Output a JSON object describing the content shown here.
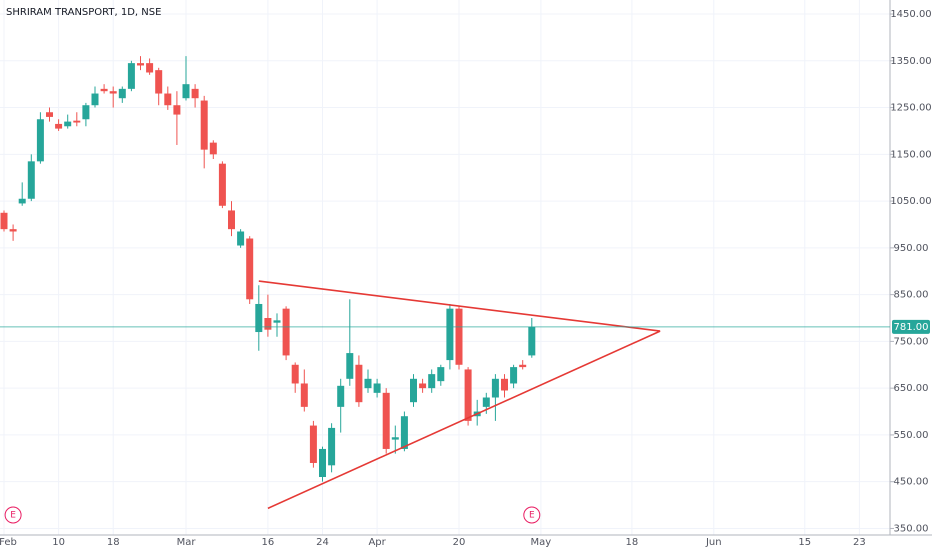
{
  "chart_data": {
    "type": "candlestick",
    "title": "SHRIRAM TRANSPORT, 1D, NSE",
    "categories": [
      "Feb",
      null,
      null,
      null,
      null,
      null,
      "10",
      null,
      null,
      null,
      null,
      null,
      "18",
      null,
      null,
      null,
      null,
      null,
      null,
      null,
      "Mar",
      null,
      null,
      null,
      null,
      null,
      null,
      null,
      null,
      "16",
      null,
      null,
      null,
      null,
      null,
      "24",
      null,
      null,
      null,
      null,
      null,
      "Apr",
      null,
      null,
      null,
      null,
      null,
      null,
      null,
      null,
      "20",
      null,
      null,
      null,
      null,
      null,
      null,
      null,
      null,
      "May",
      null,
      null,
      null,
      null,
      null,
      null,
      null,
      null,
      null,
      "18",
      null,
      null,
      null,
      null,
      null,
      null,
      null,
      null,
      "Jun",
      null,
      null,
      null,
      null,
      null,
      null,
      null,
      null,
      null,
      "15",
      null,
      null,
      null,
      null,
      null,
      "23",
      null,
      null,
      null
    ],
    "open": [
      1025,
      990,
      1045,
      1055,
      1135,
      1240,
      1215,
      1210,
      1222,
      1225,
      1255,
      1290,
      1285,
      1270,
      1290,
      1345,
      1345,
      1330,
      1280,
      1255,
      1270,
      1290,
      1265,
      1175,
      1130,
      1030,
      955,
      970,
      770,
      800,
      790,
      820,
      700,
      660,
      570,
      460,
      485,
      610,
      670,
      700,
      650,
      640,
      640,
      540,
      520,
      620,
      660,
      650,
      665,
      710,
      820,
      690,
      590,
      610,
      630,
      670,
      660,
      700,
      720,
      null,
      null,
      null,
      null,
      null,
      null,
      null,
      null,
      null,
      null,
      null,
      null,
      null,
      null,
      null,
      null,
      null,
      null,
      null,
      null,
      null,
      null,
      null,
      null,
      null,
      null,
      null,
      null,
      null,
      null,
      null,
      null,
      null,
      null,
      null,
      null,
      null,
      null,
      null
    ],
    "high": [
      1030,
      1000,
      1090,
      1150,
      1240,
      1250,
      1225,
      1235,
      1240,
      1260,
      1295,
      1300,
      1295,
      1295,
      1350,
      1360,
      1355,
      1335,
      1295,
      1285,
      1360,
      1300,
      1275,
      1180,
      1135,
      1050,
      990,
      975,
      870,
      850,
      810,
      825,
      705,
      690,
      580,
      525,
      575,
      670,
      840,
      720,
      690,
      670,
      650,
      570,
      600,
      680,
      670,
      690,
      700,
      830,
      825,
      695,
      625,
      640,
      680,
      680,
      700,
      710,
      800,
      null,
      null,
      null,
      null,
      null,
      null,
      null,
      null,
      null,
      null,
      null,
      null,
      null,
      null,
      null,
      null,
      null,
      null,
      null,
      null,
      null,
      null,
      null,
      null,
      null,
      null,
      null,
      null,
      null,
      null,
      null,
      null,
      null,
      null,
      null,
      null,
      null,
      null,
      null
    ],
    "low": [
      985,
      965,
      1040,
      1050,
      1130,
      1220,
      1200,
      1205,
      1210,
      1210,
      1250,
      1280,
      1250,
      1260,
      1285,
      1330,
      1320,
      1255,
      1245,
      1170,
      1265,
      1250,
      1120,
      1140,
      1035,
      975,
      950,
      830,
      730,
      760,
      760,
      710,
      640,
      600,
      480,
      450,
      470,
      555,
      655,
      610,
      640,
      630,
      510,
      510,
      515,
      610,
      640,
      640,
      655,
      690,
      690,
      570,
      570,
      595,
      580,
      630,
      650,
      690,
      715,
      null,
      null,
      null,
      null,
      null,
      null,
      null,
      null,
      null,
      null,
      null,
      null,
      null,
      null,
      null,
      null,
      null,
      null,
      null,
      null,
      null,
      null,
      null,
      null,
      null,
      null,
      null,
      null,
      null,
      null,
      null,
      null,
      null,
      null,
      null,
      null,
      null,
      null,
      null
    ],
    "close": [
      990,
      985,
      1055,
      1135,
      1225,
      1230,
      1205,
      1220,
      1218,
      1255,
      1280,
      1285,
      1280,
      1290,
      1345,
      1340,
      1325,
      1280,
      1255,
      1235,
      1300,
      1270,
      1160,
      1150,
      1040,
      990,
      985,
      840,
      830,
      775,
      795,
      720,
      660,
      610,
      490,
      520,
      565,
      655,
      725,
      620,
      670,
      660,
      520,
      545,
      590,
      670,
      650,
      680,
      695,
      820,
      700,
      580,
      600,
      630,
      670,
      645,
      695,
      695,
      781,
      null,
      null,
      null,
      null,
      null,
      null,
      null,
      null,
      null,
      null,
      null,
      null,
      null,
      null,
      null,
      null,
      null,
      null,
      null,
      null,
      null,
      null,
      null,
      null,
      null,
      null,
      null,
      null,
      null,
      null,
      null,
      null,
      null,
      null,
      null,
      null,
      null,
      null,
      null
    ],
    "up_color": "#26a69a",
    "down_color": "#ef5350",
    "ylim": [
      336,
      1480
    ],
    "yticks": [
      {
        "value": 350,
        "label": "350.00"
      },
      {
        "value": 450,
        "label": "450.00"
      },
      {
        "value": 550,
        "label": "550.00"
      },
      {
        "value": 650,
        "label": "650.00"
      },
      {
        "value": 750,
        "label": "750.00"
      },
      {
        "value": 850,
        "label": "850.00"
      },
      {
        "value": 950,
        "label": "950.00"
      },
      {
        "value": 1050,
        "label": "1050.00"
      },
      {
        "value": 1150,
        "label": "1150.00"
      },
      {
        "value": 1250,
        "label": "1250.00"
      },
      {
        "value": 1350,
        "label": "1350.00"
      },
      {
        "value": 1450,
        "label": "1450.00"
      }
    ],
    "grid": true,
    "last_price": 781,
    "last_price_label": "781.00",
    "last_price_color": "#26a69a",
    "trendlines": [
      {
        "color": "#e53935",
        "x": [
          28,
          72.1
        ],
        "y": [
          879,
          772
        ]
      },
      {
        "color": "#e53935",
        "x": [
          29,
          72.1
        ],
        "y": [
          393,
          772
        ]
      }
    ],
    "events": [
      {
        "x": 1,
        "label": "E"
      },
      {
        "x": 58,
        "label": "E"
      }
    ],
    "event_color": "#e91e63"
  }
}
